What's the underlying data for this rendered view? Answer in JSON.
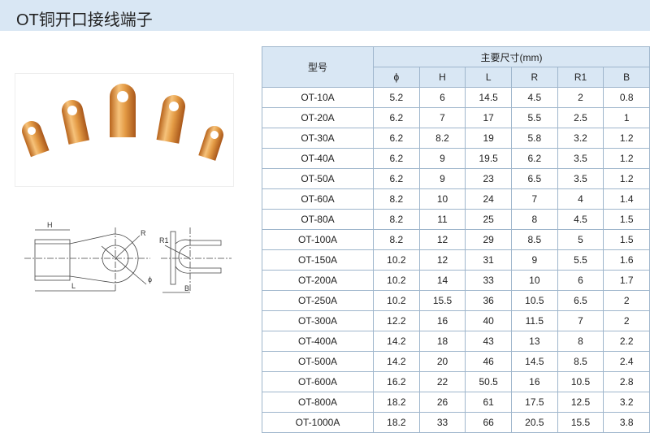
{
  "title": "OT铜开口接线端子",
  "table": {
    "model_header": "型号",
    "group_header": "主要尺寸(mm)",
    "columns": [
      "ϕ",
      "H",
      "L",
      "R",
      "R1",
      "B"
    ],
    "rows": [
      [
        "OT-10A",
        "5.2",
        "6",
        "14.5",
        "4.5",
        "2",
        "0.8"
      ],
      [
        "OT-20A",
        "6.2",
        "7",
        "17",
        "5.5",
        "2.5",
        "1"
      ],
      [
        "OT-30A",
        "6.2",
        "8.2",
        "19",
        "5.8",
        "3.2",
        "1.2"
      ],
      [
        "OT-40A",
        "6.2",
        "9",
        "19.5",
        "6.2",
        "3.5",
        "1.2"
      ],
      [
        "OT-50A",
        "6.2",
        "9",
        "23",
        "6.5",
        "3.5",
        "1.2"
      ],
      [
        "OT-60A",
        "8.2",
        "10",
        "24",
        "7",
        "4",
        "1.4"
      ],
      [
        "OT-80A",
        "8.2",
        "11",
        "25",
        "8",
        "4.5",
        "1.5"
      ],
      [
        "OT-100A",
        "8.2",
        "12",
        "29",
        "8.5",
        "5",
        "1.5"
      ],
      [
        "OT-150A",
        "10.2",
        "12",
        "31",
        "9",
        "5.5",
        "1.6"
      ],
      [
        "OT-200A",
        "10.2",
        "14",
        "33",
        "10",
        "6",
        "1.7"
      ],
      [
        "OT-250A",
        "10.2",
        "15.5",
        "36",
        "10.5",
        "6.5",
        "2"
      ],
      [
        "OT-300A",
        "12.2",
        "16",
        "40",
        "11.5",
        "7",
        "2"
      ],
      [
        "OT-400A",
        "14.2",
        "18",
        "43",
        "13",
        "8",
        "2.2"
      ],
      [
        "OT-500A",
        "14.2",
        "20",
        "46",
        "14.5",
        "8.5",
        "2.4"
      ],
      [
        "OT-600A",
        "16.2",
        "22",
        "50.5",
        "16",
        "10.5",
        "2.8"
      ],
      [
        "OT-800A",
        "18.2",
        "26",
        "61",
        "17.5",
        "12.5",
        "3.2"
      ],
      [
        "OT-1000A",
        "18.2",
        "33",
        "66",
        "20.5",
        "15.5",
        "3.8"
      ]
    ]
  },
  "drawing_labels": {
    "H": "H",
    "L": "L",
    "R": "R",
    "phi": "ϕ",
    "R1": "R1",
    "B": "B"
  },
  "colors": {
    "header_bg": "#d9e7f4",
    "border": "#9fb6cc",
    "copper": "#e09a3a"
  }
}
